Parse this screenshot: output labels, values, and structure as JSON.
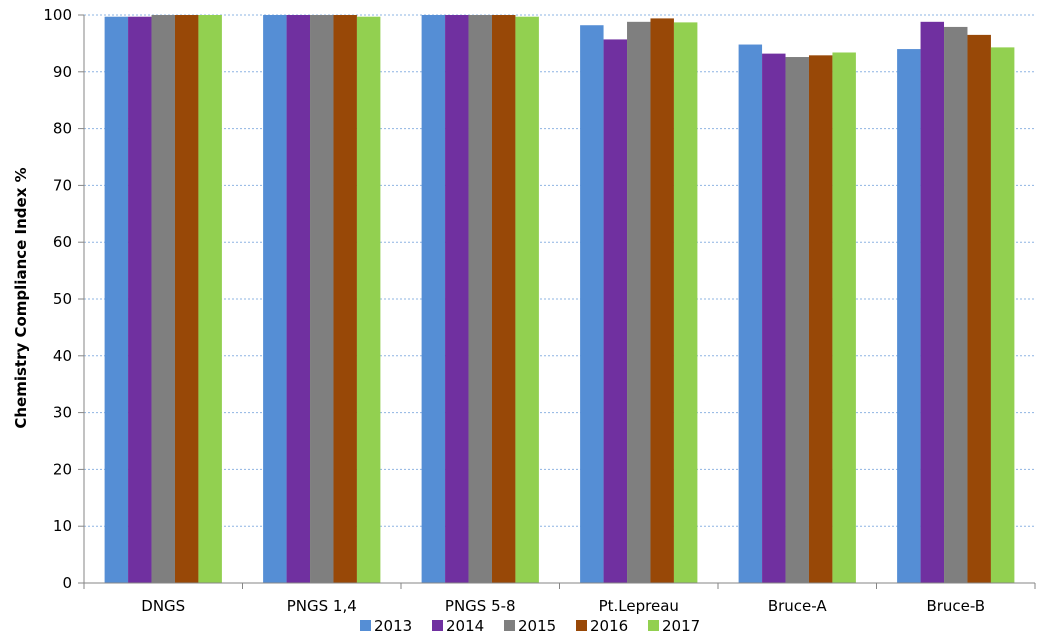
{
  "chart_data": {
    "type": "bar",
    "title": "",
    "xlabel": "",
    "ylabel": "Chemistry Compliance Index    %",
    "ylim": [
      0,
      100
    ],
    "ytick_step": 10,
    "grid": "horizontal-dotted",
    "legend_position": "bottom",
    "categories": [
      "DNGS",
      "PNGS 1,4",
      "PNGS 5-8",
      "Pt.Lepreau",
      "Bruce-A",
      "Bruce-B"
    ],
    "series": [
      {
        "name": "2013",
        "color": "#558ED5",
        "values": [
          99.7,
          100,
          100,
          98.2,
          94.8,
          94.0
        ]
      },
      {
        "name": "2014",
        "color": "#7030A0",
        "values": [
          99.7,
          100,
          100,
          95.7,
          93.2,
          98.8
        ]
      },
      {
        "name": "2015",
        "color": "#7F7F7F",
        "values": [
          100,
          100,
          100,
          98.8,
          92.6,
          97.9
        ]
      },
      {
        "name": "2016",
        "color": "#984807",
        "values": [
          100,
          100,
          100,
          99.4,
          92.9,
          96.5
        ]
      },
      {
        "name": "2017",
        "color": "#92D050",
        "values": [
          100,
          99.7,
          99.7,
          98.7,
          93.4,
          94.3
        ]
      }
    ]
  }
}
